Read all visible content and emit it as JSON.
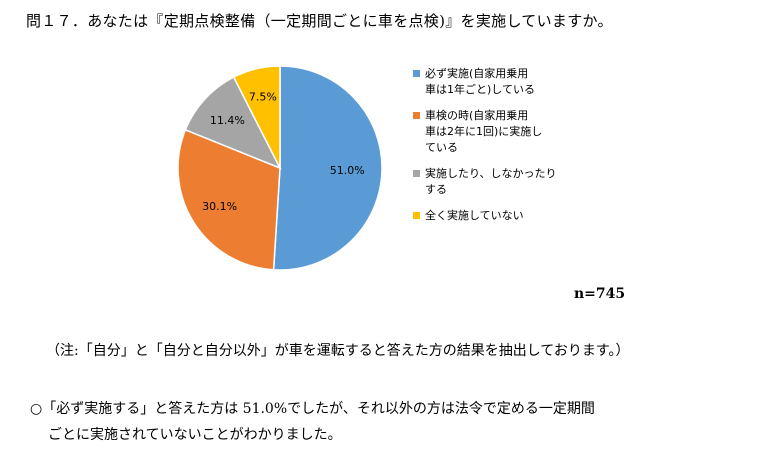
{
  "question": "問１７．あなたは『定期点検整備（一定期間ごとに車を点検)』を実施していますか。",
  "chart_data": {
    "type": "pie",
    "slices": [
      {
        "label": "必ず実施(自家用乗用\n車は1年ごと)している",
        "value": 51.0,
        "display": "51.0%",
        "color": "#5B9BD5"
      },
      {
        "label": "車検の時(自家用乗用\n車は2年に1回)に実施し\nている",
        "value": 30.1,
        "display": "30.1%",
        "color": "#ED7D31"
      },
      {
        "label": "実施したり、しなかったり\nする",
        "value": 11.4,
        "display": "11.4%",
        "color": "#A5A5A5"
      },
      {
        "label": "全く実施していない",
        "value": 7.5,
        "display": "7.5%",
        "color": "#FFC000"
      }
    ],
    "legend_position": "right"
  },
  "sample_size": "n=745",
  "note": "（注:「自分」と「自分と自分以外」が車を運転すると答えた方の結果を抽出しております。）",
  "conclusion": {
    "line1": "○「必ず実施する」と答えた方は 51.0%でしたが、それ以外の方は法令で定める一定期間",
    "line2": "ごとに実施されていないことがわかりました。"
  }
}
